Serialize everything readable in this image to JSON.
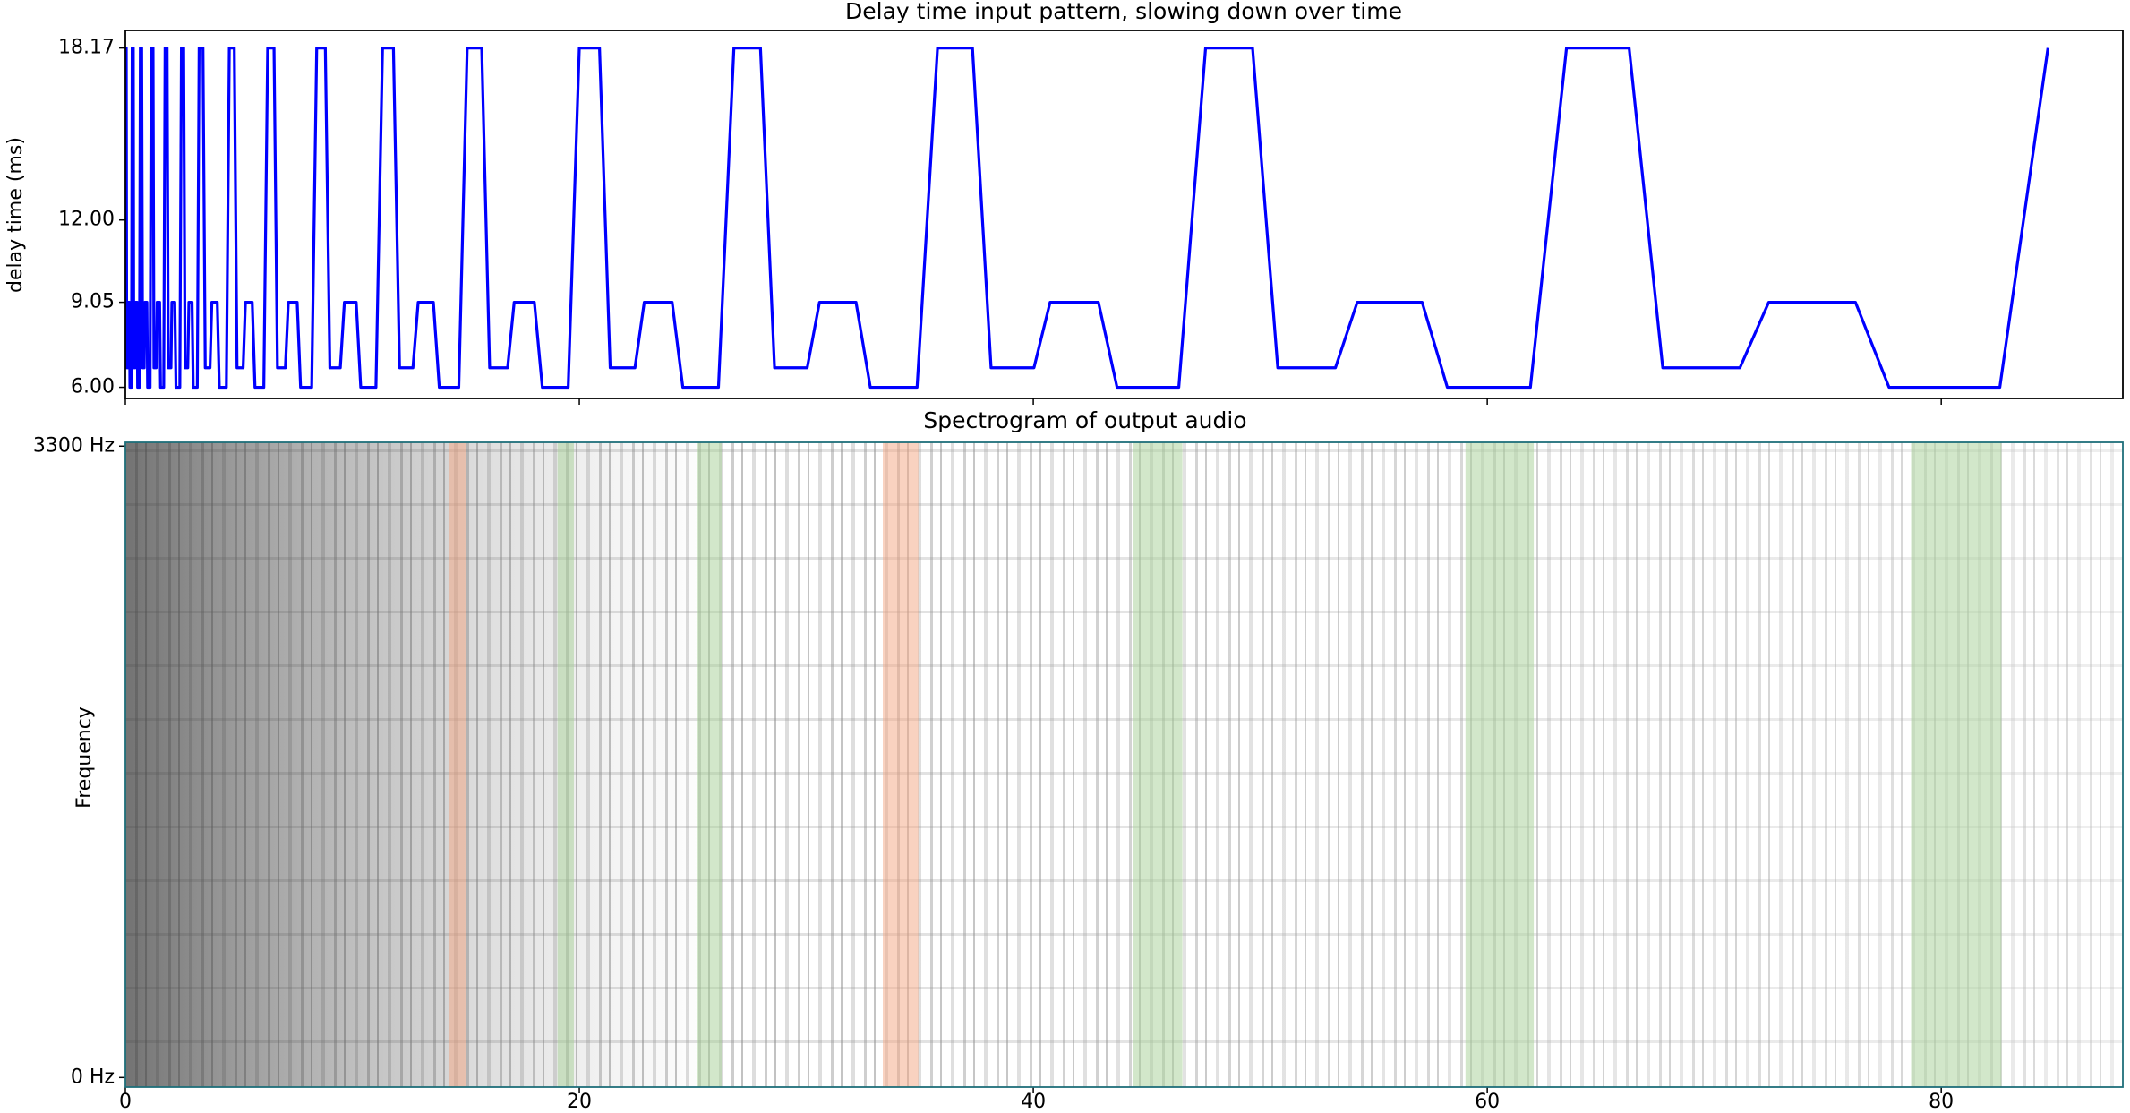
{
  "chart_data": [
    {
      "type": "line",
      "title": "Delay time input pattern, slowing down over time",
      "ylabel": "delay time (ms)",
      "xlim": [
        0,
        88
      ],
      "ylim": [
        5.6,
        18.8
      ],
      "xticks": [
        0,
        20,
        40,
        60,
        80
      ],
      "yticks": [
        {
          "value": 6.0,
          "label": "6.00"
        },
        {
          "value": 9.05,
          "label": "9.05"
        },
        {
          "value": 12.0,
          "label": "12.00"
        },
        {
          "value": 18.17,
          "label": "18.17"
        }
      ],
      "x": [
        0,
        0.04,
        0.06,
        0.11,
        0.13,
        0.18,
        0.2,
        0.27,
        0.3,
        0.35,
        0.37,
        0.43,
        0.45,
        0.52,
        0.54,
        0.62,
        0.66,
        0.72,
        0.76,
        0.83,
        0.86,
        0.95,
        0.98,
        1.09,
        1.14,
        1.22,
        1.26,
        1.36,
        1.4,
        1.51,
        1.55,
        1.69,
        1.75,
        1.84,
        1.89,
        2.01,
        2.05,
        2.18,
        2.23,
        2.4,
        2.47,
        2.57,
        2.63,
        2.75,
        2.8,
        2.94,
        2.99,
        3.17,
        3.25,
        3.42,
        3.52,
        3.73,
        3.81,
        4.05,
        4.14,
        4.45,
        4.58,
        4.8,
        4.92,
        5.19,
        5.29,
        5.59,
        5.71,
        6.1,
        6.27,
        6.55,
        6.7,
        7.05,
        7.18,
        7.57,
        7.72,
        8.21,
        8.43,
        8.81,
        9.01,
        9.47,
        9.65,
        10.17,
        10.37,
        11.04,
        11.33,
        11.81,
        12.08,
        12.67,
        12.9,
        13.57,
        13.83,
        14.69,
        15.06,
        15.7,
        16.05,
        16.84,
        17.13,
        18.02,
        18.37,
        19.51,
        20.0,
        20.89,
        21.36,
        22.45,
        22.86,
        24.09,
        24.56,
        26.13,
        26.81,
        27.98,
        28.6,
        30.04,
        30.58,
        32.19,
        32.82,
        34.88,
        35.78,
        37.32,
        38.14,
        40.03,
        40.74,
        42.87,
        43.69,
        46.41,
        47.59,
        49.66,
        50.77,
        53.31,
        54.27,
        57.13,
        58.24,
        61.9,
        63.49,
        66.25,
        67.73,
        71.13,
        72.4,
        76.22,
        77.7,
        82.58,
        84.7
      ],
      "series": [
        {
          "color": "#0000ff",
          "values": [
            18.17,
            18.17,
            6.7,
            6.7,
            9.05,
            9.05,
            6.0,
            6.0,
            18.17,
            18.17,
            6.7,
            6.7,
            9.05,
            9.05,
            6.0,
            6.0,
            18.17,
            18.17,
            6.7,
            6.7,
            9.05,
            9.05,
            6.0,
            6.0,
            18.17,
            18.17,
            6.7,
            6.7,
            9.05,
            9.05,
            6.0,
            6.0,
            18.17,
            18.17,
            6.7,
            6.7,
            9.05,
            9.05,
            6.0,
            6.0,
            18.17,
            18.17,
            6.7,
            6.7,
            9.05,
            9.05,
            6.0,
            6.0,
            18.17,
            18.17,
            6.7,
            6.7,
            9.05,
            9.05,
            6.0,
            6.0,
            18.17,
            18.17,
            6.7,
            6.7,
            9.05,
            9.05,
            6.0,
            6.0,
            18.17,
            18.17,
            6.7,
            6.7,
            9.05,
            9.05,
            6.0,
            6.0,
            18.17,
            18.17,
            6.7,
            6.7,
            9.05,
            9.05,
            6.0,
            6.0,
            18.17,
            18.17,
            6.7,
            6.7,
            9.05,
            9.05,
            6.0,
            6.0,
            18.17,
            18.17,
            6.7,
            6.7,
            9.05,
            9.05,
            6.0,
            6.0,
            18.17,
            18.17,
            6.7,
            6.7,
            9.05,
            9.05,
            6.0,
            6.0,
            18.17,
            18.17,
            6.7,
            6.7,
            9.05,
            9.05,
            6.0,
            6.0,
            18.17,
            18.17,
            6.7,
            6.7,
            9.05,
            9.05,
            6.0,
            6.0,
            18.17,
            18.17,
            6.7,
            6.7,
            9.05,
            9.05,
            6.0,
            6.0,
            18.17,
            18.17,
            6.7,
            6.7,
            9.05,
            9.05,
            6.0,
            6.0,
            18.17
          ]
        }
      ]
    },
    {
      "type": "spectrogram",
      "title": "Spectrogram of output audio",
      "ylabel": "Frequency",
      "xlim": [
        0,
        88
      ],
      "ylim": [
        -50,
        3320
      ],
      "xticks": [
        0,
        20,
        40,
        60,
        80
      ],
      "yticks": [
        {
          "value": 0,
          "label": "0 Hz"
        },
        {
          "value": 3300,
          "label": "3300 Hz"
        }
      ],
      "highlights": [
        {
          "x": [
            14.28,
            15.0
          ],
          "color": "#f4a582"
        },
        {
          "x": [
            19.04,
            19.76
          ],
          "color": "#a6d096"
        },
        {
          "x": [
            25.18,
            26.27
          ],
          "color": "#a6d096"
        },
        {
          "x": [
            33.37,
            34.94
          ],
          "color": "#f4a582"
        },
        {
          "x": [
            44.4,
            46.57
          ],
          "color": "#a6d096"
        },
        {
          "x": [
            59.04,
            62.05
          ],
          "color": "#a6d096"
        },
        {
          "x": [
            78.67,
            82.65
          ],
          "color": "#a6d096"
        }
      ]
    }
  ]
}
